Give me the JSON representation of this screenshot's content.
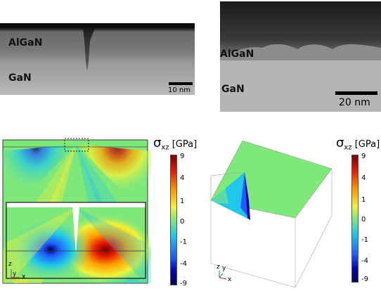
{
  "tem_left": {
    "layer_top": "AlGaN",
    "layer_bottom": "GaN",
    "scale_bar": "10 nm"
  },
  "tem_right": {
    "layer_top": "AlGaN",
    "layer_bottom": "GaN",
    "scale_bar": "20 nm"
  },
  "sim_left": {
    "colorbar": {
      "title_sym": "σ",
      "title_sub": "xz",
      "title_unit": "[GPa]",
      "ticks": [
        "9",
        "4",
        "1",
        "0",
        "-1",
        "-4",
        "-9"
      ]
    },
    "axes": {
      "z": "z",
      "y": "y",
      "x": "x"
    }
  },
  "sim_right": {
    "colorbar": {
      "title_sym": "σ",
      "title_sub": "xz",
      "title_unit": "[GPa]",
      "ticks": [
        "9",
        "4",
        "1",
        "0",
        "-1",
        "-4",
        "-9"
      ]
    },
    "axes": {
      "z": "z",
      "y": "y",
      "x": "x"
    }
  },
  "colors": {
    "field_green": "#7fe87a",
    "cmap": [
      "#7a0000",
      "#e61a00",
      "#ffa000",
      "#f2f23a",
      "#7fe87a",
      "#1fc8e8",
      "#1f5fff",
      "#0000b0",
      "#00005a"
    ]
  }
}
